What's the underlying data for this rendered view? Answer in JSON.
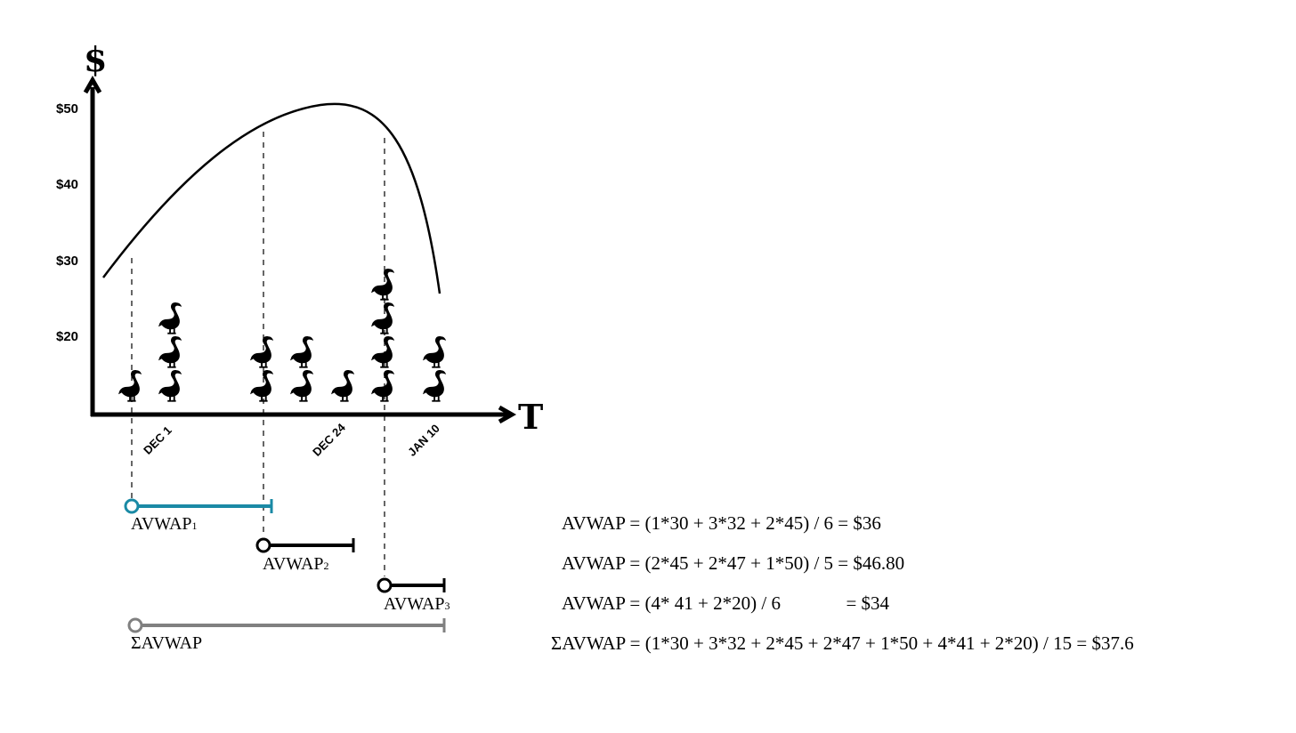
{
  "axes": {
    "y_symbol": "$",
    "x_symbol": "T",
    "y_ticks": [
      "$50",
      "$40",
      "$30",
      "$20"
    ],
    "x_ticks": [
      "DEC 1",
      "DEC 24",
      "JAN 10"
    ]
  },
  "segments": [
    {
      "label": "AVWAP",
      "sub": "1",
      "color": "#1a8aa5"
    },
    {
      "label": "AVWAP",
      "sub": "2",
      "color": "#000000"
    },
    {
      "label": "AVWAP",
      "sub": "3",
      "color": "#000000"
    },
    {
      "label": "ΣAVWAP",
      "sub": "",
      "color": "#808080"
    }
  ],
  "formulas": [
    "AVWAP = (1*30 + 3*32 + 2*45) / 6 = $36",
    "AVWAP = (2*45 + 2*47 + 1*50) / 5 = $46.80",
    "AVWAP = (4* 41 + 2*20) / 6              = $34",
    "ΣAVWAP = (1*30 + 3*32 + 2*45 + 2*47 + 1*50 + 4*41 + 2*20) / 15 = $37.6"
  ],
  "goose_counts": [
    1,
    3,
    2,
    2,
    1,
    4,
    2
  ],
  "icon": "goose-icon"
}
